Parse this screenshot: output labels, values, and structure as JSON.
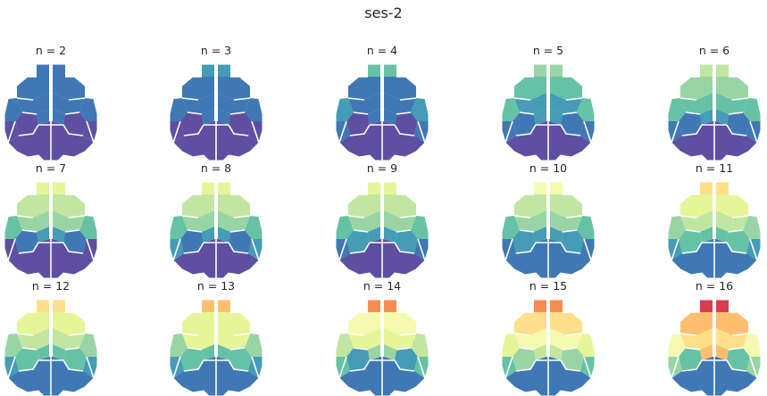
{
  "figure": {
    "title": "ses-2"
  },
  "palette": [
    "#5e4fa2",
    "#3f78b4",
    "#449cb6",
    "#66c2a5",
    "#99d5a4",
    "#c1e6a1",
    "#e6f598",
    "#f4fab0",
    "#fee08b",
    "#fdbf6f",
    "#f68d52",
    "#d53e4f"
  ],
  "panels": [
    {
      "label": "n = 2",
      "colors": {
        "olf": 1,
        "front": 1,
        "mid": 1,
        "side": 1,
        "ant": 1,
        "post": 0,
        "back": 0,
        "lat": 0
      }
    },
    {
      "label": "n = 3",
      "colors": {
        "olf": 2,
        "front": 1,
        "mid": 1,
        "side": 1,
        "ant": 1,
        "post": 0,
        "back": 0,
        "lat": 0
      }
    },
    {
      "label": "n = 4",
      "colors": {
        "olf": 3,
        "front": 1,
        "mid": 1,
        "side": 2,
        "ant": 1,
        "post": 0,
        "back": 0,
        "lat": 1
      }
    },
    {
      "label": "n = 5",
      "colors": {
        "olf": 4,
        "front": 3,
        "mid": 2,
        "side": 3,
        "ant": 2,
        "post": 0,
        "back": 1,
        "lat": 1
      }
    },
    {
      "label": "n = 6",
      "colors": {
        "olf": 5,
        "front": 4,
        "mid": 3,
        "side": 3,
        "ant": 2,
        "post": 0,
        "back": 1,
        "lat": 1
      }
    },
    {
      "label": "n = 7",
      "colors": {
        "olf": 6,
        "front": 5,
        "mid": 4,
        "side": 3,
        "ant": 2,
        "post": 0,
        "back": 1,
        "lat": 0
      }
    },
    {
      "label": "n = 8",
      "colors": {
        "olf": 6,
        "front": 5,
        "mid": 4,
        "side": 3,
        "ant": 2,
        "post": 0,
        "back": 1,
        "lat": 2
      }
    },
    {
      "label": "n = 9",
      "colors": {
        "olf": 6,
        "front": 5,
        "mid": 4,
        "side": 3,
        "ant": 2,
        "post": 0,
        "back": 2,
        "lat": 1
      }
    },
    {
      "label": "n = 10",
      "colors": {
        "olf": 7,
        "front": 5,
        "mid": 4,
        "side": 3,
        "ant": 2,
        "post": 1,
        "back": 2,
        "lat": 1
      }
    },
    {
      "label": "n = 11",
      "colors": {
        "olf": 8,
        "front": 6,
        "mid": 5,
        "side": 4,
        "ant": 3,
        "post": 1,
        "back": 3,
        "lat": 2
      }
    },
    {
      "label": "n = 12",
      "colors": {
        "olf": 8,
        "front": 6,
        "mid": 5,
        "side": 4,
        "ant": 3,
        "post": 1,
        "back": 3,
        "lat": 2
      }
    },
    {
      "label": "n = 13",
      "colors": {
        "olf": 9,
        "front": 6,
        "mid": 6,
        "side": 4,
        "ant": 3,
        "post": 1,
        "back": 3,
        "lat": 2
      }
    },
    {
      "label": "n = 14",
      "colors": {
        "olf": 10,
        "front": 7,
        "mid": 6,
        "side": 5,
        "ant": 4,
        "post": 1,
        "back": 2,
        "lat": 3
      }
    },
    {
      "label": "n = 15",
      "colors": {
        "olf": 10,
        "front": 8,
        "mid": 7,
        "side": 6,
        "ant": 5,
        "post": 1,
        "back": 4,
        "lat": 3
      }
    },
    {
      "label": "n = 16",
      "colors": {
        "olf": 11,
        "front": 9,
        "mid": 8,
        "side": 7,
        "ant": 9,
        "post": 1,
        "back": 3,
        "lat": 4
      }
    }
  ]
}
